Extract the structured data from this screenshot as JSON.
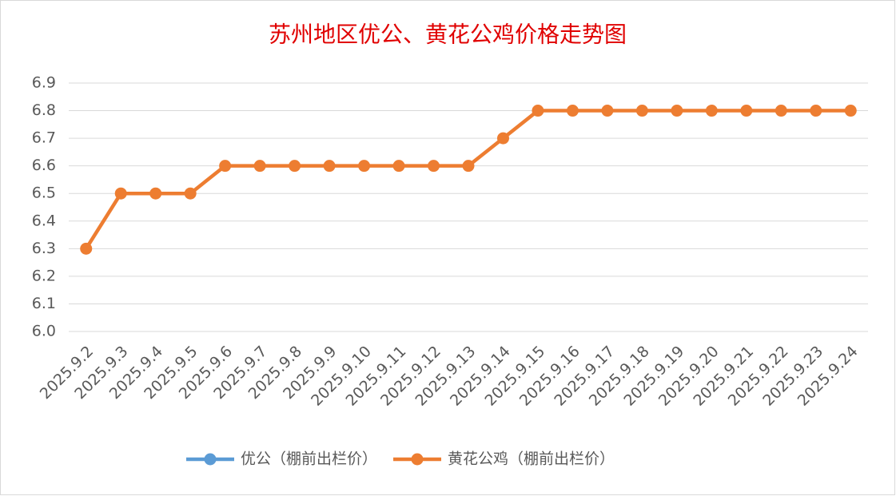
{
  "chart_data": {
    "type": "line",
    "title": "苏州地区优公、黄花公鸡价格走势图",
    "categories": [
      "2025.9.2",
      "2025.9.3",
      "2025.9.4",
      "2025.9.5",
      "2025.9.6",
      "2025.9.7",
      "2025.9.8",
      "2025.9.9",
      "2025.9.10",
      "2025.9.11",
      "2025.9.12",
      "2025.9.13",
      "2025.9.14",
      "2025.9.15",
      "2025.9.16",
      "2025.9.17",
      "2025.9.18",
      "2025.9.19",
      "2025.9.20",
      "2025.9.21",
      "2025.9.22",
      "2025.9.23",
      "2025.9.24"
    ],
    "series": [
      {
        "name": "优公（棚前出栏价）",
        "color": "#5b9bd5",
        "values": [
          null,
          null,
          null,
          null,
          null,
          null,
          null,
          null,
          null,
          null,
          null,
          null,
          null,
          null,
          null,
          null,
          null,
          null,
          null,
          null,
          null,
          null,
          null
        ]
      },
      {
        "name": "黄花公鸡（棚前出栏价）",
        "color": "#ed7d31",
        "values": [
          6.3,
          6.5,
          6.5,
          6.5,
          6.6,
          6.6,
          6.6,
          6.6,
          6.6,
          6.6,
          6.6,
          6.6,
          6.7,
          6.8,
          6.8,
          6.8,
          6.8,
          6.8,
          6.8,
          6.8,
          6.8,
          6.8,
          6.8
        ]
      }
    ],
    "ylim": [
      6.0,
      6.9
    ],
    "yticks": [
      {
        "value": 6,
        "label": "6.0"
      },
      6.1,
      6.2,
      6.3,
      6.4,
      6.5,
      6.6,
      6.7,
      6.8,
      6.9
    ],
    "grid": true,
    "legend": "bottom"
  }
}
